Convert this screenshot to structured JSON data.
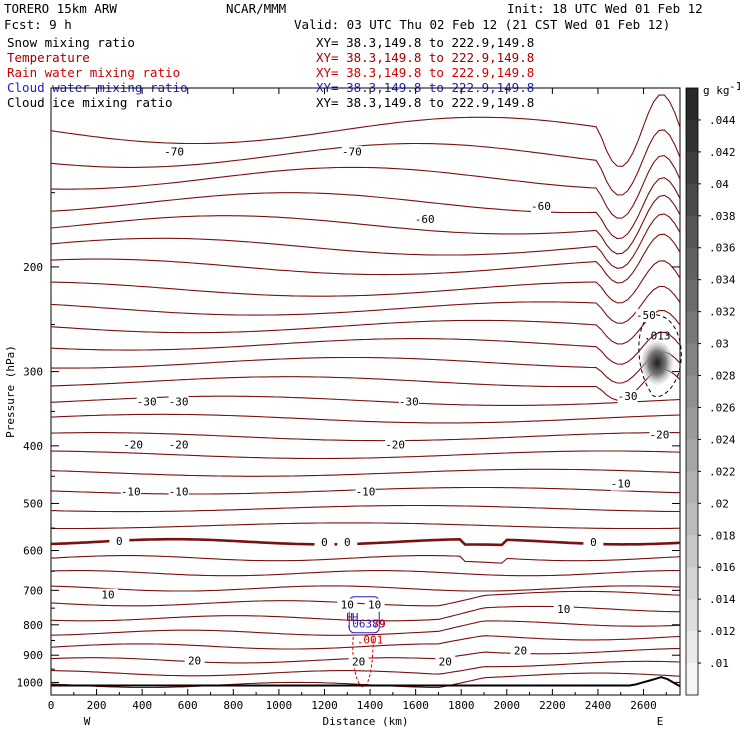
{
  "header": {
    "model": "TORERO  15km ARW",
    "fcst": "Fcst:    9 h",
    "org": "NCAR/MMM",
    "init": "Init: 18 UTC Wed 01 Feb 12",
    "valid": "Valid: 03 UTC Thu 02 Feb 12 (21 CST Wed 01 Feb 12)"
  },
  "fields": [
    {
      "name": "Snow mixing ratio",
      "color": "#000000",
      "xy": "XY=  38.3,149.8 to 222.9,149.8"
    },
    {
      "name": "Temperature",
      "color": "#a00000",
      "xy": "XY=  38.3,149.8 to 222.9,149.8"
    },
    {
      "name": "Rain water mixing ratio",
      "color": "#d00000",
      "xy": "XY=  38.3,149.8 to 222.9,149.8"
    },
    {
      "name": "Cloud water mixing ratio",
      "color": "#2020c0",
      "xy": "XY=  38.3,149.8 to 222.9,149.8"
    },
    {
      "name": "Cloud ice mixing ratio",
      "color": "#000000",
      "xy": "XY=  38.3,149.8 to 222.9,149.8"
    }
  ],
  "chart_data": {
    "type": "cross-section contour",
    "xlabel": "Distance (km)",
    "ylabel": "Pressure (hPa)",
    "xlim": [
      0,
      2760
    ],
    "ylim": [
      1050,
      100
    ],
    "x_ticks": [
      "0",
      "200",
      "400",
      "600",
      "800",
      "1000",
      "1200",
      "1400",
      "1600",
      "1800",
      "2000",
      "2200",
      "2400",
      "2600"
    ],
    "y_ticks": [
      "200",
      "300",
      "400",
      "500",
      "600",
      "700",
      "800",
      "900",
      "1000"
    ],
    "end_labels": {
      "left": "W",
      "right": "E"
    },
    "colorbar": {
      "unit": "g kg",
      "unit_exp": "-1",
      "ticks": [
        ".044",
        ".042",
        ".04",
        ".038",
        ".036",
        ".034",
        ".032",
        ".03",
        ".028",
        ".026",
        ".024",
        ".022",
        ".02",
        ".018",
        ".016",
        ".014",
        ".012",
        ".01"
      ]
    },
    "temperature_labels": [
      {
        "text": "-70",
        "x": 540,
        "p": 128
      },
      {
        "text": "-70",
        "x": 1320,
        "p": 128
      },
      {
        "text": "-60",
        "x": 1640,
        "p": 166
      },
      {
        "text": "-60",
        "x": 2150,
        "p": 158
      },
      {
        "text": "-50",
        "x": 2610,
        "p": 241
      },
      {
        "text": "-30",
        "x": 420,
        "p": 337
      },
      {
        "text": "-30",
        "x": 560,
        "p": 337
      },
      {
        "text": "-30",
        "x": 1570,
        "p": 337
      },
      {
        "text": "-30",
        "x": 2530,
        "p": 330
      },
      {
        "text": "-20",
        "x": 360,
        "p": 398
      },
      {
        "text": "-20",
        "x": 560,
        "p": 398
      },
      {
        "text": "-20",
        "x": 1510,
        "p": 398
      },
      {
        "text": "-20",
        "x": 2670,
        "p": 383
      },
      {
        "text": "-10",
        "x": 350,
        "p": 477
      },
      {
        "text": "-10",
        "x": 560,
        "p": 477
      },
      {
        "text": "-10",
        "x": 1380,
        "p": 477
      },
      {
        "text": "-10",
        "x": 2500,
        "p": 463
      },
      {
        "text": "0",
        "x": 300,
        "p": 578
      },
      {
        "text": "0",
        "x": 1200,
        "p": 580
      },
      {
        "text": "0",
        "x": 1300,
        "p": 580
      },
      {
        "text": "0",
        "x": 2380,
        "p": 580
      },
      {
        "text": "10",
        "x": 250,
        "p": 712
      },
      {
        "text": "10",
        "x": 1300,
        "p": 740
      },
      {
        "text": "10",
        "x": 1420,
        "p": 740
      },
      {
        "text": "10",
        "x": 2250,
        "p": 753
      },
      {
        "text": "20",
        "x": 630,
        "p": 918
      },
      {
        "text": "20",
        "x": 1350,
        "p": 922
      },
      {
        "text": "20",
        "x": 1730,
        "p": 922
      },
      {
        "text": "20",
        "x": 2060,
        "p": 883
      }
    ],
    "ice_max_label": {
      "text": ".013",
      "x": 2660,
      "p": 265
    },
    "rain_label": {
      "text": ".001",
      "x": 1400,
      "p": 860
    },
    "cloud_labels": [
      {
        "text": "H",
        "x": 1310,
        "p": 788,
        "color": "#d00000"
      },
      {
        "text": "H",
        "x": 1335,
        "p": 788,
        "color": "#2020c0"
      },
      {
        "text": ".06389",
        "x": 1380,
        "p": 808,
        "color": "#2020c0"
      },
      {
        "text": "79",
        "x": 1440,
        "p": 808,
        "color": "#d00000"
      }
    ]
  }
}
